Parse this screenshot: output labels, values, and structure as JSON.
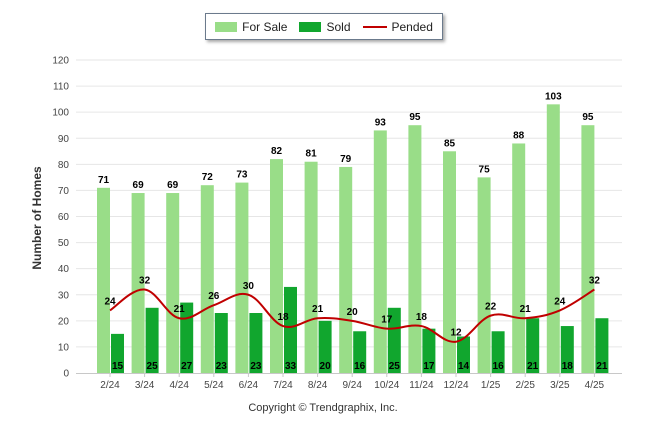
{
  "chart_data": {
    "type": "bar",
    "categories": [
      "2/24",
      "3/24",
      "4/24",
      "5/24",
      "6/24",
      "7/24",
      "8/24",
      "9/24",
      "10/24",
      "11/24",
      "12/24",
      "1/25",
      "2/25",
      "3/25",
      "4/25"
    ],
    "series": [
      {
        "name": "For Sale",
        "kind": "bar",
        "color": "#99dd88",
        "values": [
          71,
          69,
          69,
          72,
          73,
          82,
          81,
          79,
          93,
          95,
          85,
          75,
          88,
          103,
          95
        ]
      },
      {
        "name": "Sold",
        "kind": "bar",
        "color": "#11a62e",
        "values": [
          15,
          25,
          27,
          23,
          23,
          33,
          20,
          16,
          25,
          17,
          14,
          16,
          21,
          18,
          21
        ]
      },
      {
        "name": "Pended",
        "kind": "line",
        "color": "#c00000",
        "values": [
          24,
          32,
          21,
          26,
          30,
          18,
          21,
          20,
          17,
          18,
          12,
          22,
          21,
          24,
          32
        ]
      }
    ],
    "ylabel": "Number of Homes",
    "ylim": [
      0,
      120
    ],
    "yticks": [
      0,
      10,
      20,
      30,
      40,
      50,
      60,
      70,
      80,
      90,
      100,
      110,
      120
    ],
    "legend_position": "top-center",
    "grid": true
  },
  "footer": {
    "copyright": "Copyright © Trendgraphix, Inc."
  }
}
